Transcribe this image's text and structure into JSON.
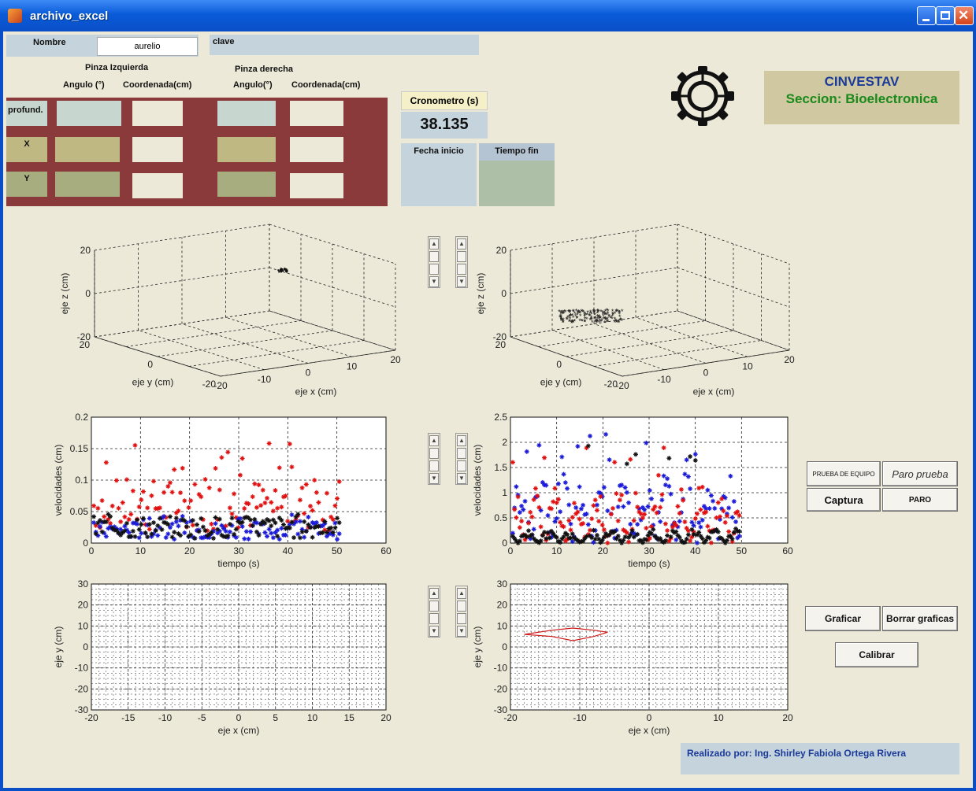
{
  "window": {
    "title": "archivo_excel"
  },
  "form": {
    "nombre_label": "Nombre",
    "nombre_value": "aurelio",
    "clave_label": "clave",
    "clave_value": "",
    "pinza_izq": "Pinza Izquierda",
    "pinza_der": "Pinza derecha",
    "angulo_izq": "Angulo (°)",
    "coord_izq": "Coordenada(cm)",
    "angulo_der": "Angulo(°)",
    "coord_der": "Coordenada(cm)",
    "rows": [
      "profund.",
      "X",
      "Y"
    ]
  },
  "timer": {
    "label": "Cronometro (s)",
    "value": "38.135",
    "fecha_label": "Fecha inicio",
    "tiempo_label": "Tiempo fin"
  },
  "institution": {
    "name": "CINVESTAV",
    "section": "Seccion: Bioelectronica",
    "logo": "cinvestav-gear-logo"
  },
  "buttons": {
    "prueba": "PRUEBA DE EQUIPO",
    "paro_prueba": "Paro prueba",
    "captura": "Captura",
    "paro": "PARO",
    "graficar": "Graficar",
    "borrar": "Borrar graficas",
    "calibrar": "Calibrar"
  },
  "footer": {
    "credit": "Realizado  por: Ing. Shirley Fabiola Ortega Rivera"
  },
  "chart_data": [
    {
      "id": "left-3d",
      "type": "scatter",
      "xlabel": "eje x (cm)",
      "ylabel": "eje y (cm)",
      "zlabel": "eje z (cm)",
      "xlim": [
        -20,
        20
      ],
      "ylim": [
        -20,
        20
      ],
      "zlim": [
        -20,
        20
      ],
      "zticks": [
        "20",
        "0",
        "-20"
      ],
      "yticks": [
        "20",
        "0",
        "-20"
      ],
      "xticks": [
        "-20",
        "-10",
        "0",
        "10",
        "20"
      ]
    },
    {
      "id": "right-3d",
      "type": "scatter",
      "xlabel": "eje x (cm)",
      "ylabel": "eje y (cm)",
      "zlabel": "eje z (cm)",
      "xlim": [
        -20,
        20
      ],
      "ylim": [
        -20,
        20
      ],
      "zlim": [
        -20,
        20
      ],
      "zticks": [
        "20",
        "0",
        "-20"
      ],
      "yticks": [
        "20",
        "0",
        "-20"
      ],
      "xticks": [
        "-20",
        "-10",
        "0",
        "10",
        "20"
      ]
    },
    {
      "id": "left-vel",
      "type": "scatter",
      "xlabel": "tiempo (s)",
      "ylabel": "velocidades (cm)",
      "xlim": [
        0,
        60
      ],
      "ylim": [
        0,
        0.2
      ],
      "xticks": [
        "0",
        "10",
        "20",
        "30",
        "40",
        "50",
        "60"
      ],
      "yticks": [
        "0",
        "0.05",
        "0.1",
        "0.15",
        "0.2"
      ],
      "series": [
        {
          "color": "#e01010",
          "y_mean": 0.06,
          "y_max": 0.16
        },
        {
          "color": "#1a1ad8",
          "y_mean": 0.02,
          "y_max": 0.05
        },
        {
          "color": "#111111",
          "y_mean": 0.025,
          "y_max": 0.05
        }
      ]
    },
    {
      "id": "right-vel",
      "type": "scatter",
      "xlabel": "tiempo (s)",
      "ylabel": "velocidades (cm)",
      "xlim": [
        0,
        60
      ],
      "ylim": [
        0,
        2.5
      ],
      "xticks": [
        "0",
        "10",
        "20",
        "30",
        "40",
        "50",
        "60"
      ],
      "yticks": [
        "0",
        "0.5",
        "1",
        "1.5",
        "2",
        "2.5"
      ],
      "series": [
        {
          "color": "#1a1ad8",
          "y_mean": 0.8,
          "y_max": 2.2
        },
        {
          "color": "#e01010",
          "y_mean": 0.6,
          "y_max": 1.9
        },
        {
          "color": "#111111",
          "y_mean": 0.15,
          "y_max": 2.1
        }
      ]
    },
    {
      "id": "left-xy",
      "type": "line",
      "xlabel": "eje x (cm)",
      "ylabel": "eje y (cm)",
      "xlim": [
        -20,
        20
      ],
      "ylim": [
        -30,
        30
      ],
      "xticks": [
        "-20",
        "-15",
        "-10",
        "-5",
        "0",
        "5",
        "10",
        "15",
        "20"
      ],
      "yticks": [
        "30",
        "20",
        "10",
        "0",
        "-10",
        "-20",
        "-30"
      ]
    },
    {
      "id": "right-xy",
      "type": "line",
      "xlabel": "eje x (cm)",
      "ylabel": "eje y (cm)",
      "xlim": [
        -20,
        20
      ],
      "ylim": [
        -30,
        30
      ],
      "xticks": [
        "-20",
        "-10",
        "0",
        "10",
        "20"
      ],
      "yticks": [
        "30",
        "20",
        "10",
        "0",
        "-10",
        "-20",
        "-30"
      ],
      "series": [
        {
          "color": "#d01a1a",
          "x": [
            -18,
            -14,
            -11,
            -8,
            -6,
            -8,
            -11,
            -14,
            -18
          ],
          "y": [
            6,
            8,
            9,
            8,
            7,
            5,
            3,
            5,
            6
          ]
        }
      ]
    }
  ]
}
